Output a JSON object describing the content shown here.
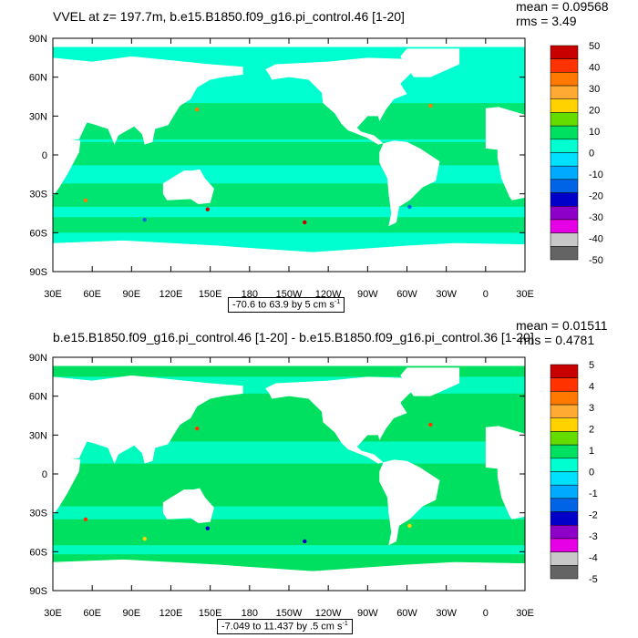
{
  "panels": [
    {
      "title": "VVEL at z= 197.7m, b.e15.B1850.f09_g16.pi_control.46 [1-20]",
      "mean": "mean = 0.09568",
      "rms": "rms = 3.49",
      "range_text": "-70.6 to 63.9 by 5 cm s",
      "range_unit_exp": "-1",
      "colorbar_labels": [
        "50",
        "40",
        "30",
        "20",
        "10",
        "0",
        "-10",
        "-20",
        "-30",
        "-40",
        "-50"
      ]
    },
    {
      "title": "b.e15.B1850.f09_g16.pi_control.46 [1-20] - b.e15.B1850.f09_g16.pi_control.36 [1-20]",
      "mean": "mean = 0.01511",
      "rms": "rms = 0.4781",
      "range_text": "-7.049 to 11.437 by .5 cm s",
      "range_unit_exp": "-1",
      "colorbar_labels": [
        "5",
        "4",
        "3",
        "2",
        "1",
        "0",
        "-1",
        "-2",
        "-3",
        "-4",
        "-5"
      ]
    }
  ],
  "lat_labels": [
    "90N",
    "60N",
    "30N",
    "0",
    "30S",
    "60S",
    "90S"
  ],
  "lon_labels": [
    "30E",
    "60E",
    "90E",
    "120E",
    "150E",
    "180",
    "150W",
    "120W",
    "90W",
    "60W",
    "30W",
    "0",
    "30E"
  ],
  "colors": {
    "ocean_top": "#00ffd0",
    "ocean_green": "#00e060",
    "land": "#ffffff",
    "colorbar": [
      "#c80000",
      "#ff3200",
      "#ff7800",
      "#ffaa32",
      "#ffd200",
      "#64dc00",
      "#00e060",
      "#00ffd0",
      "#00e0ff",
      "#00aaff",
      "#0064e6",
      "#0000c8",
      "#8c00c8",
      "#e600e6",
      "#c8c8c8",
      "#646464"
    ]
  }
}
